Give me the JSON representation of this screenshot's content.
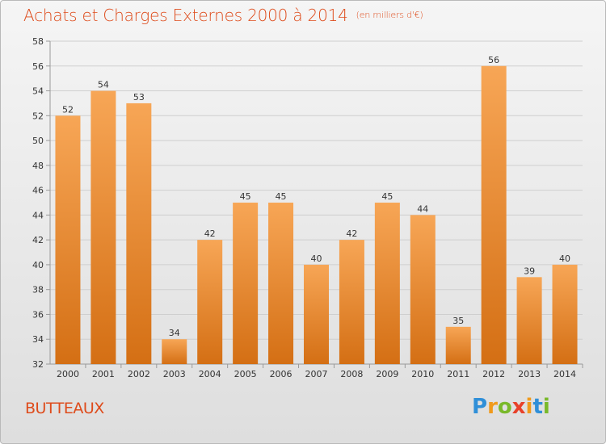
{
  "header": {
    "title": "Achats et Charges Externes 2000 à 2014",
    "subtitle": "(en milliers d'€)"
  },
  "commune": "BUTTEAUX",
  "logo": {
    "text": "Proxiti",
    "letters": [
      {
        "ch": "P",
        "color": "#2f8fd8"
      },
      {
        "ch": "r",
        "color": "#f09a1c"
      },
      {
        "ch": "o",
        "color": "#79b92a"
      },
      {
        "ch": "x",
        "color": "#e8412a"
      },
      {
        "ch": "i",
        "color": "#f09a1c"
      },
      {
        "ch": "t",
        "color": "#2f8fd8"
      },
      {
        "ch": "i",
        "color": "#79b92a"
      }
    ]
  },
  "colors": {
    "bar_top": "#f7a656",
    "bar_bottom": "#d46f14",
    "title": "#de4b1b",
    "grid": "#cfcfcf",
    "axis": "#9a9a9a"
  },
  "chart_data": {
    "type": "bar",
    "title": "Achats et Charges Externes 2000 à 2014",
    "subtitle": "(en milliers d'€)",
    "categories": [
      "2000",
      "2001",
      "2002",
      "2003",
      "2004",
      "2005",
      "2006",
      "2007",
      "2008",
      "2009",
      "2010",
      "2011",
      "2012",
      "2013",
      "2014"
    ],
    "values": [
      52,
      54,
      53,
      34,
      42,
      45,
      45,
      40,
      42,
      45,
      44,
      35,
      56,
      39,
      40
    ],
    "ylim": [
      32,
      58
    ],
    "yticks": [
      32,
      34,
      36,
      38,
      40,
      42,
      44,
      46,
      48,
      50,
      52,
      54,
      56,
      58
    ],
    "grid": true,
    "legend": "none",
    "xlabel": "",
    "ylabel": ""
  }
}
